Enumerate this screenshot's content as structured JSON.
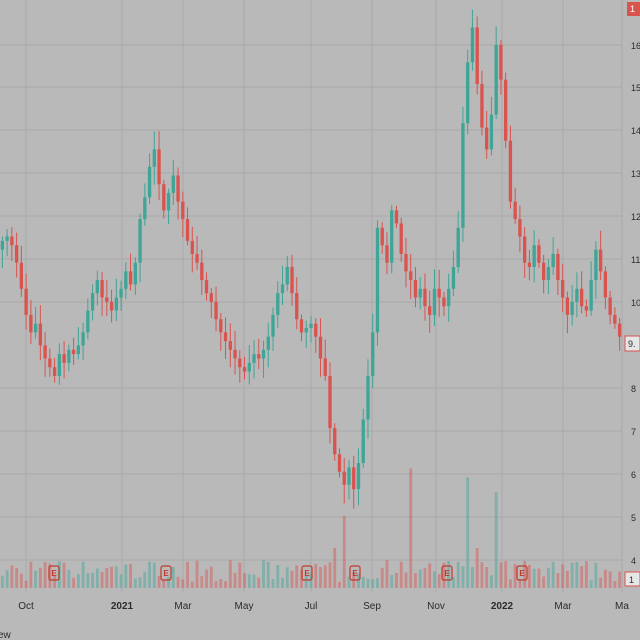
{
  "colors": {
    "background": "#b9b9b9",
    "up": "#3ea597",
    "down": "#d9534f",
    "grid": "#a9a9a9",
    "price_badge": "#d9534f",
    "earnings": "#c0392b"
  },
  "price_axis": {
    "ticks": [
      "16",
      "15",
      "14",
      "13",
      "12",
      "11",
      "10",
      "8",
      "7",
      "6",
      "5",
      "4"
    ],
    "top_badge": "1",
    "current_badge": "9.",
    "bottom_badge": "1"
  },
  "earnings_marker": "E",
  "bottom_left_label": "ew",
  "chart_data": {
    "type": "candlestick",
    "x_tick_labels": [
      "Oct",
      "2021",
      "Mar",
      "May",
      "Jul",
      "Sep",
      "Nov",
      "2022",
      "Mar",
      "Ma"
    ],
    "bold_ticks": [
      "2021",
      "2022"
    ],
    "y_tick_labels": [
      "16",
      "15",
      "14",
      "13",
      "12",
      "11",
      "10",
      "8",
      "7",
      "6",
      "5",
      "4"
    ],
    "ylim": [
      3.6,
      16.8
    ],
    "grid": true,
    "earnings_events": 8,
    "close_series": [
      11.5,
      11.6,
      11.4,
      11.0,
      10.4,
      9.8,
      9.4,
      9.6,
      9.1,
      8.8,
      8.6,
      8.4,
      8.9,
      8.7,
      9.0,
      8.9,
      9.1,
      9.4,
      9.9,
      10.3,
      10.6,
      10.2,
      10.1,
      9.9,
      10.2,
      10.4,
      10.8,
      10.5,
      11.0,
      12.0,
      12.5,
      13.2,
      13.6,
      12.8,
      12.2,
      12.6,
      13.0,
      12.4,
      12.0,
      11.5,
      11.2,
      11.0,
      10.6,
      10.3,
      10.1,
      9.7,
      9.4,
      9.2,
      9.0,
      8.8,
      8.6,
      8.5,
      8.7,
      8.9,
      8.8,
      9.0,
      9.3,
      9.8,
      10.3,
      10.5,
      10.9,
      10.3,
      9.7,
      9.4,
      9.5,
      9.6,
      9.3,
      8.8,
      8.4,
      7.2,
      6.6,
      6.2,
      5.9,
      6.3,
      5.8,
      6.4,
      7.4,
      8.4,
      9.4,
      11.8,
      11.4,
      11.0,
      12.2,
      11.9,
      11.2,
      10.8,
      10.6,
      10.2,
      10.4,
      10.0,
      9.8,
      10.4,
      10.2,
      10.0,
      10.4,
      10.9,
      11.8,
      14.2,
      15.6,
      16.4,
      15.1,
      14.1,
      13.6,
      14.4,
      16.0,
      15.2,
      13.8,
      12.4,
      12.0,
      11.6,
      11.0,
      10.9,
      11.4,
      11.0,
      10.6,
      10.9,
      11.2,
      10.6,
      10.2,
      9.8,
      10.1,
      10.4,
      10.0,
      9.9,
      10.6,
      11.3,
      10.8,
      10.2,
      9.8,
      9.6,
      9.3
    ]
  }
}
